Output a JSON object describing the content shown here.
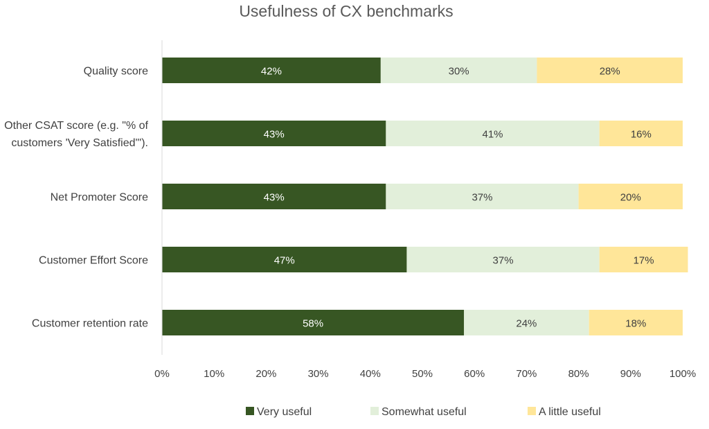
{
  "chart_data": {
    "type": "bar",
    "orientation": "horizontal",
    "stacked": true,
    "percent_stacked": true,
    "title": "Usefulness of CX benchmarks",
    "xlabel": "",
    "ylabel": "",
    "xlim": [
      0,
      100
    ],
    "x_ticks": [
      "0%",
      "10%",
      "20%",
      "30%",
      "40%",
      "50%",
      "60%",
      "70%",
      "80%",
      "90%",
      "100%"
    ],
    "grid": false,
    "legend_position": "bottom",
    "categories": [
      [
        "Quality score"
      ],
      [
        "Other CSAT score (e.g. \"% of",
        "customers 'Very Satisfied'\")."
      ],
      [
        "Net Promoter Score"
      ],
      [
        "Customer Effort Score"
      ],
      [
        "Customer retention rate"
      ]
    ],
    "series": [
      {
        "name": "Very useful",
        "color": "#375623",
        "label_color": "#ffffff",
        "values": [
          42,
          43,
          43,
          47,
          58
        ],
        "labels": [
          "42%",
          "43%",
          "43%",
          "47%",
          "58%"
        ]
      },
      {
        "name": "Somewhat useful",
        "color": "#e2efda",
        "label_color": "#404040",
        "values": [
          30,
          41,
          37,
          37,
          24
        ],
        "labels": [
          "30%",
          "41%",
          "37%",
          "37%",
          "24%"
        ]
      },
      {
        "name": "A little useful",
        "color": "#ffe699",
        "label_color": "#404040",
        "values": [
          28,
          16,
          20,
          17,
          18
        ],
        "labels": [
          "28%",
          "16%",
          "20%",
          "17%",
          "18%"
        ]
      }
    ]
  }
}
